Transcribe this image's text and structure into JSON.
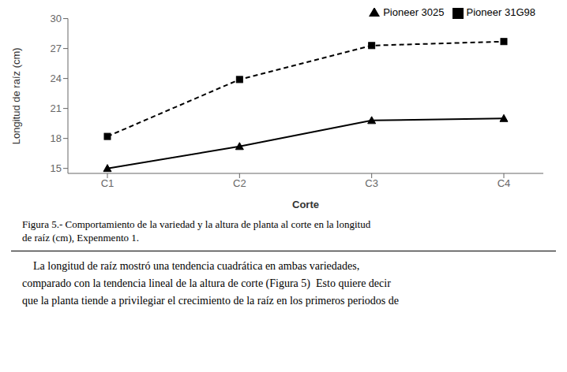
{
  "chart_data": {
    "type": "line",
    "categories": [
      "C1",
      "C2",
      "C3",
      "C4"
    ],
    "series": [
      {
        "name": "Pioneer 3025",
        "color": "#000000",
        "values": [
          15.0,
          17.2,
          19.8,
          20.0
        ],
        "marker": "triangle",
        "line_style": "solid"
      },
      {
        "name": "Pioneer 31G98",
        "color": "#000000",
        "values": [
          18.2,
          23.9,
          27.3,
          27.7
        ],
        "marker": "square",
        "line_style": "dashed"
      }
    ],
    "xlabel": "Corte",
    "ylabel": "Longitud de raíz (cm)",
    "ylim": [
      14.5,
      30
    ],
    "yticks": [
      15,
      18,
      21,
      24,
      27,
      30
    ],
    "legend": "upper right",
    "grid": false,
    "annotations": [
      [
        "Figura 5.- Comportamiento de la variedad y la altura de planta al corte en la longitud",
        "de raíz (cm), Expenmento 1."
      ],
      [
        "    La longitud de raíz mostró una tendencia cuadrática en ambas variedades,",
        "comparado con la tendencia lineal de la altura de corte (Figura 5)  Esto quiere decir",
        "que la planta tiende a privilegiar el crecimiento de la raíz en los primeros periodos de"
      ]
    ]
  }
}
